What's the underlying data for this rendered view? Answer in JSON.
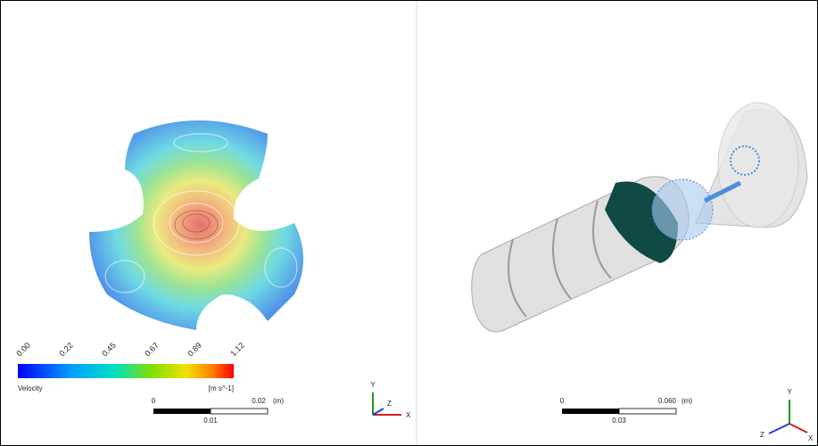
{
  "left_view": {
    "legend": {
      "ticks": [
        "0.00",
        "0.22",
        "0.45",
        "0.67",
        "0.89",
        "1.12"
      ],
      "variable": "Velocity",
      "unit": "[m s^-1]"
    },
    "scale_bar": {
      "start": "0",
      "end": "0.02",
      "unit": "(m)",
      "mid": "0.01"
    },
    "triad": {
      "y": "Y",
      "z": "Z",
      "x": "X"
    }
  },
  "right_view": {
    "scale_bar": {
      "start": "0",
      "end": "0.060",
      "unit": "(m)",
      "mid": "0.03"
    },
    "triad": {
      "y": "Y",
      "z": "Z",
      "x": "X"
    }
  }
}
